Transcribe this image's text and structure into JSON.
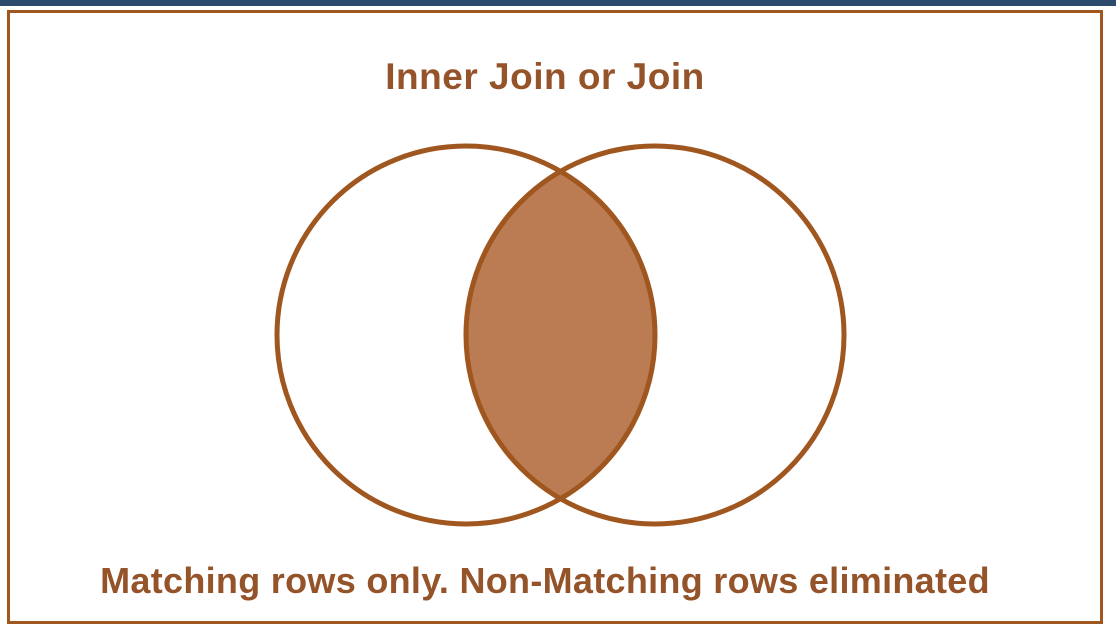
{
  "diagram": {
    "title": "Inner Join or Join",
    "caption": "Matching rows only. Non-Matching rows eliminated",
    "colors": {
      "stroke": "#a0561f",
      "fill_intersection": "#bb7b53",
      "text": "#95532a",
      "frame": "#a0561f"
    }
  }
}
